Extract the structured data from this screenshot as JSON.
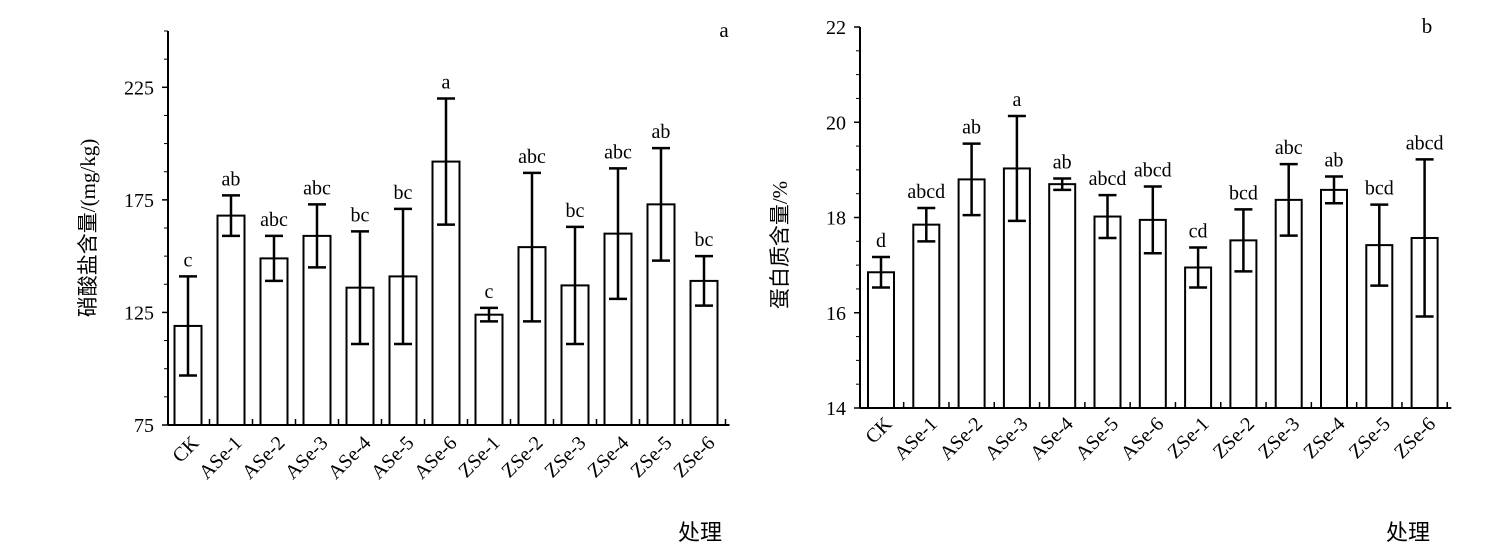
{
  "colors": {
    "bar_fill": "#ffffff",
    "stroke": "#000000",
    "background": "#ffffff"
  },
  "chart_data": [
    {
      "type": "bar",
      "panel_label": "a",
      "categories": [
        "CK",
        "ASe-1",
        "ASe-2",
        "ASe-3",
        "ASe-4",
        "ASe-5",
        "ASe-6",
        "ZSe-1",
        "ZSe-2",
        "ZSe-3",
        "ZSe-4",
        "ZSe-5",
        "ZSe-6"
      ],
      "values": [
        119,
        168,
        149,
        159,
        136,
        141,
        192,
        124,
        154,
        137,
        160,
        173,
        139
      ],
      "errors": [
        22,
        9,
        10,
        14,
        25,
        30,
        28,
        3,
        33,
        26,
        29,
        25,
        11
      ],
      "significance": [
        "c",
        "ab",
        "abc",
        "abc",
        "bc",
        "bc",
        "a",
        "c",
        "abc",
        "bc",
        "abc",
        "ab",
        "bc"
      ],
      "xlabel": "处理",
      "ylabel": "硝酸盐含量/(mg/kg)",
      "ylim": [
        75,
        250
      ],
      "yticks": [
        75,
        125,
        175,
        225
      ],
      "grid": false,
      "legend": "none"
    },
    {
      "type": "bar",
      "panel_label": "b",
      "categories": [
        "CK",
        "ASe-1",
        "ASe-2",
        "ASe-3",
        "ASe-4",
        "ASe-5",
        "ASe-6",
        "ZSe-1",
        "ZSe-2",
        "ZSe-3",
        "ZSe-4",
        "ZSe-5",
        "ZSe-6"
      ],
      "values": [
        16.85,
        17.85,
        18.8,
        19.03,
        18.7,
        18.02,
        17.95,
        16.95,
        17.52,
        18.37,
        18.58,
        17.42,
        17.57
      ],
      "errors": [
        0.32,
        0.35,
        0.75,
        1.1,
        0.12,
        0.45,
        0.7,
        0.42,
        0.65,
        0.75,
        0.28,
        0.85,
        1.65
      ],
      "significance": [
        "d",
        "abcd",
        "ab",
        "a",
        "ab",
        "abcd",
        "abcd",
        "cd",
        "bcd",
        "abc",
        "ab",
        "bcd",
        "abcd"
      ],
      "xlabel": "处理",
      "ylabel": "蛋白质含量/%",
      "ylim": [
        14,
        22
      ],
      "yticks": [
        14,
        16,
        18,
        20,
        22
      ],
      "grid": false,
      "legend": "none"
    }
  ]
}
